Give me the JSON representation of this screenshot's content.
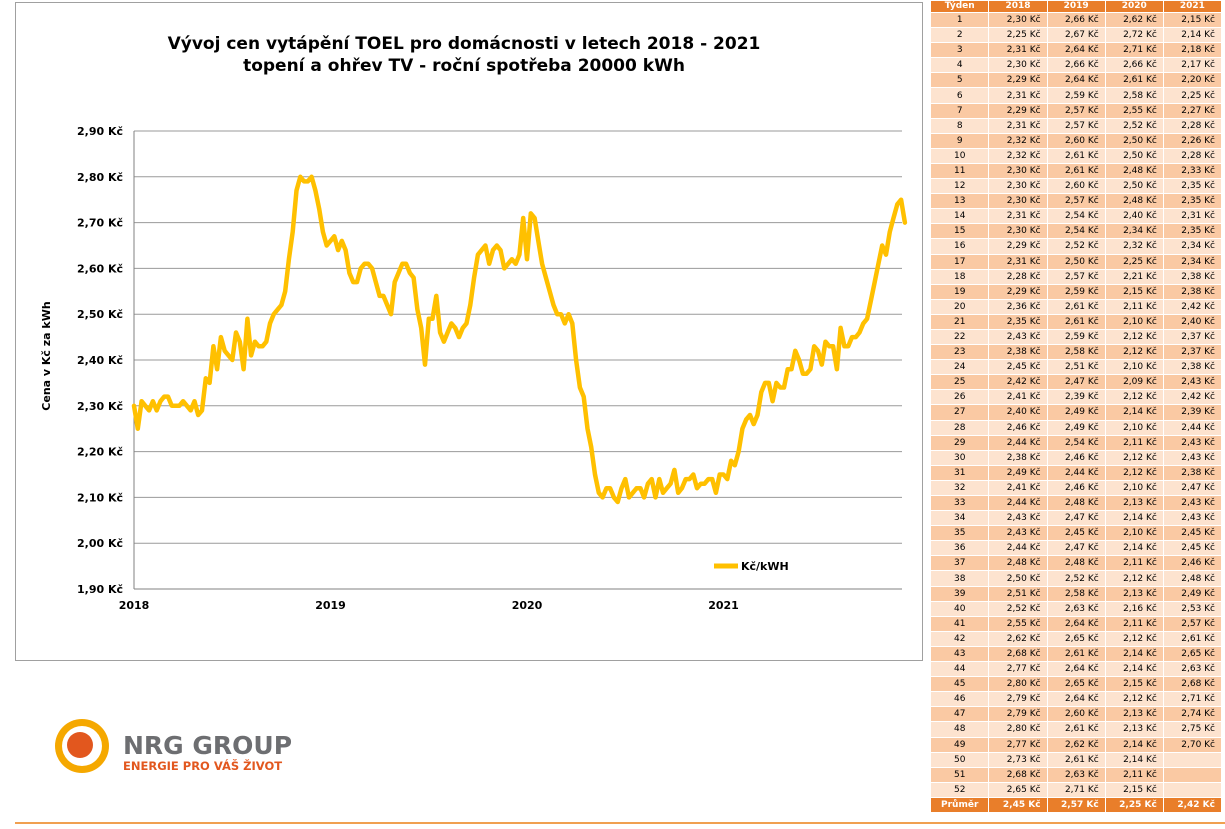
{
  "chart_data": {
    "type": "line",
    "title_line1": "Vývoj cen vytápění TOEL pro domácnosti v letech 2018 - 2021",
    "title_line2": "topení a ohřev TV - roční spotřeba 20000 kWh",
    "ylabel": "Cena v Kč za kWh",
    "xlabel": "",
    "ylim": [
      1.9,
      2.9
    ],
    "yticks": [
      "1,90 Kč",
      "2,00 Kč",
      "2,10 Kč",
      "2,20 Kč",
      "2,30 Kč",
      "2,40 Kč",
      "2,50 Kč",
      "2,60 Kč",
      "2,70 Kč",
      "2,80 Kč",
      "2,90 Kč"
    ],
    "xticks": [
      "2018",
      "2019",
      "2020",
      "2021"
    ],
    "grid": true,
    "legend_placement": "bottom-right",
    "series": [
      {
        "name": "Kč/kWH",
        "color": "#ffc000",
        "values": [
          2.3,
          2.25,
          2.31,
          2.3,
          2.29,
          2.31,
          2.29,
          2.31,
          2.32,
          2.32,
          2.3,
          2.3,
          2.3,
          2.31,
          2.3,
          2.29,
          2.31,
          2.28,
          2.29,
          2.36,
          2.35,
          2.43,
          2.38,
          2.45,
          2.42,
          2.41,
          2.4,
          2.46,
          2.44,
          2.38,
          2.49,
          2.41,
          2.44,
          2.43,
          2.43,
          2.44,
          2.48,
          2.5,
          2.51,
          2.52,
          2.55,
          2.62,
          2.68,
          2.77,
          2.8,
          2.79,
          2.79,
          2.8,
          2.77,
          2.73,
          2.68,
          2.65,
          2.66,
          2.67,
          2.64,
          2.66,
          2.64,
          2.59,
          2.57,
          2.57,
          2.6,
          2.61,
          2.61,
          2.6,
          2.57,
          2.54,
          2.54,
          2.52,
          2.5,
          2.57,
          2.59,
          2.61,
          2.61,
          2.59,
          2.58,
          2.51,
          2.47,
          2.39,
          2.49,
          2.49,
          2.54,
          2.46,
          2.44,
          2.46,
          2.48,
          2.47,
          2.45,
          2.47,
          2.48,
          2.52,
          2.58,
          2.63,
          2.64,
          2.65,
          2.61,
          2.64,
          2.65,
          2.64,
          2.6,
          2.61,
          2.62,
          2.61,
          2.63,
          2.71,
          2.62,
          2.72,
          2.71,
          2.66,
          2.61,
          2.58,
          2.55,
          2.52,
          2.5,
          2.5,
          2.48,
          2.5,
          2.48,
          2.4,
          2.34,
          2.32,
          2.25,
          2.21,
          2.15,
          2.11,
          2.1,
          2.12,
          2.12,
          2.1,
          2.09,
          2.12,
          2.14,
          2.1,
          2.11,
          2.12,
          2.12,
          2.1,
          2.13,
          2.14,
          2.1,
          2.14,
          2.11,
          2.12,
          2.13,
          2.16,
          2.11,
          2.12,
          2.14,
          2.14,
          2.15,
          2.12,
          2.13,
          2.13,
          2.14,
          2.14,
          2.11,
          2.15,
          2.15,
          2.14,
          2.18,
          2.17,
          2.2,
          2.25,
          2.27,
          2.28,
          2.26,
          2.28,
          2.33,
          2.35,
          2.35,
          2.31,
          2.35,
          2.34,
          2.34,
          2.38,
          2.38,
          2.42,
          2.4,
          2.37,
          2.37,
          2.38,
          2.43,
          2.42,
          2.39,
          2.44,
          2.43,
          2.43,
          2.38,
          2.47,
          2.43,
          2.43,
          2.45,
          2.45,
          2.46,
          2.48,
          2.49,
          2.53,
          2.57,
          2.61,
          2.65,
          2.63,
          2.68,
          2.71,
          2.74,
          2.75,
          2.7
        ]
      }
    ]
  },
  "table": {
    "headers": [
      "Týden",
      "2018",
      "2019",
      "2020",
      "2021"
    ],
    "rows": [
      [
        "1",
        "2,30 Kč",
        "2,66 Kč",
        "2,62 Kč",
        "2,15 Kč"
      ],
      [
        "2",
        "2,25 Kč",
        "2,67 Kč",
        "2,72 Kč",
        "2,14 Kč"
      ],
      [
        "3",
        "2,31 Kč",
        "2,64 Kč",
        "2,71 Kč",
        "2,18 Kč"
      ],
      [
        "4",
        "2,30 Kč",
        "2,66 Kč",
        "2,66 Kč",
        "2,17 Kč"
      ],
      [
        "5",
        "2,29 Kč",
        "2,64 Kč",
        "2,61 Kč",
        "2,20 Kč"
      ],
      [
        "6",
        "2,31 Kč",
        "2,59 Kč",
        "2,58 Kč",
        "2,25 Kč"
      ],
      [
        "7",
        "2,29 Kč",
        "2,57 Kč",
        "2,55 Kč",
        "2,27 Kč"
      ],
      [
        "8",
        "2,31 Kč",
        "2,57 Kč",
        "2,52 Kč",
        "2,28 Kč"
      ],
      [
        "9",
        "2,32 Kč",
        "2,60 Kč",
        "2,50 Kč",
        "2,26 Kč"
      ],
      [
        "10",
        "2,32 Kč",
        "2,61 Kč",
        "2,50 Kč",
        "2,28 Kč"
      ],
      [
        "11",
        "2,30 Kč",
        "2,61 Kč",
        "2,48 Kč",
        "2,33 Kč"
      ],
      [
        "12",
        "2,30 Kč",
        "2,60 Kč",
        "2,50 Kč",
        "2,35 Kč"
      ],
      [
        "13",
        "2,30 Kč",
        "2,57 Kč",
        "2,48 Kč",
        "2,35 Kč"
      ],
      [
        "14",
        "2,31 Kč",
        "2,54 Kč",
        "2,40 Kč",
        "2,31 Kč"
      ],
      [
        "15",
        "2,30 Kč",
        "2,54 Kč",
        "2,34 Kč",
        "2,35 Kč"
      ],
      [
        "16",
        "2,29 Kč",
        "2,52 Kč",
        "2,32 Kč",
        "2,34 Kč"
      ],
      [
        "17",
        "2,31 Kč",
        "2,50 Kč",
        "2,25 Kč",
        "2,34 Kč"
      ],
      [
        "18",
        "2,28 Kč",
        "2,57 Kč",
        "2,21 Kč",
        "2,38 Kč"
      ],
      [
        "19",
        "2,29 Kč",
        "2,59 Kč",
        "2,15 Kč",
        "2,38 Kč"
      ],
      [
        "20",
        "2,36 Kč",
        "2,61 Kč",
        "2,11 Kč",
        "2,42 Kč"
      ],
      [
        "21",
        "2,35 Kč",
        "2,61 Kč",
        "2,10 Kč",
        "2,40 Kč"
      ],
      [
        "22",
        "2,43 Kč",
        "2,59 Kč",
        "2,12 Kč",
        "2,37 Kč"
      ],
      [
        "23",
        "2,38 Kč",
        "2,58 Kč",
        "2,12 Kč",
        "2,37 Kč"
      ],
      [
        "24",
        "2,45 Kč",
        "2,51 Kč",
        "2,10 Kč",
        "2,38 Kč"
      ],
      [
        "25",
        "2,42 Kč",
        "2,47 Kč",
        "2,09 Kč",
        "2,43 Kč"
      ],
      [
        "26",
        "2,41 Kč",
        "2,39 Kč",
        "2,12 Kč",
        "2,42 Kč"
      ],
      [
        "27",
        "2,40 Kč",
        "2,49 Kč",
        "2,14 Kč",
        "2,39 Kč"
      ],
      [
        "28",
        "2,46 Kč",
        "2,49 Kč",
        "2,10 Kč",
        "2,44 Kč"
      ],
      [
        "29",
        "2,44 Kč",
        "2,54 Kč",
        "2,11 Kč",
        "2,43 Kč"
      ],
      [
        "30",
        "2,38 Kč",
        "2,46 Kč",
        "2,12 Kč",
        "2,43 Kč"
      ],
      [
        "31",
        "2,49 Kč",
        "2,44 Kč",
        "2,12 Kč",
        "2,38 Kč"
      ],
      [
        "32",
        "2,41 Kč",
        "2,46 Kč",
        "2,10 Kč",
        "2,47 Kč"
      ],
      [
        "33",
        "2,44 Kč",
        "2,48 Kč",
        "2,13 Kč",
        "2,43 Kč"
      ],
      [
        "34",
        "2,43 Kč",
        "2,47 Kč",
        "2,14 Kč",
        "2,43 Kč"
      ],
      [
        "35",
        "2,43 Kč",
        "2,45 Kč",
        "2,10 Kč",
        "2,45 Kč"
      ],
      [
        "36",
        "2,44 Kč",
        "2,47 Kč",
        "2,14 Kč",
        "2,45 Kč"
      ],
      [
        "37",
        "2,48 Kč",
        "2,48 Kč",
        "2,11 Kč",
        "2,46 Kč"
      ],
      [
        "38",
        "2,50 Kč",
        "2,52 Kč",
        "2,12 Kč",
        "2,48 Kč"
      ],
      [
        "39",
        "2,51 Kč",
        "2,58 Kč",
        "2,13 Kč",
        "2,49 Kč"
      ],
      [
        "40",
        "2,52 Kč",
        "2,63 Kč",
        "2,16 Kč",
        "2,53 Kč"
      ],
      [
        "41",
        "2,55 Kč",
        "2,64 Kč",
        "2,11 Kč",
        "2,57 Kč"
      ],
      [
        "42",
        "2,62 Kč",
        "2,65 Kč",
        "2,12 Kč",
        "2,61 Kč"
      ],
      [
        "43",
        "2,68 Kč",
        "2,61 Kč",
        "2,14 Kč",
        "2,65 Kč"
      ],
      [
        "44",
        "2,77 Kč",
        "2,64 Kč",
        "2,14 Kč",
        "2,63 Kč"
      ],
      [
        "45",
        "2,80 Kč",
        "2,65 Kč",
        "2,15 Kč",
        "2,68 Kč"
      ],
      [
        "46",
        "2,79 Kč",
        "2,64 Kč",
        "2,12 Kč",
        "2,71 Kč"
      ],
      [
        "47",
        "2,79 Kč",
        "2,60 Kč",
        "2,13 Kč",
        "2,74 Kč"
      ],
      [
        "48",
        "2,80 Kč",
        "2,61 Kč",
        "2,13 Kč",
        "2,75 Kč"
      ],
      [
        "49",
        "2,77 Kč",
        "2,62 Kč",
        "2,14 Kč",
        "2,70 Kč"
      ],
      [
        "50",
        "2,73 Kč",
        "2,61 Kč",
        "2,14 Kč",
        ""
      ],
      [
        "51",
        "2,68 Kč",
        "2,63 Kč",
        "2,11 Kč",
        ""
      ],
      [
        "52",
        "2,65 Kč",
        "2,71 Kč",
        "2,15 Kč",
        ""
      ]
    ],
    "average": [
      "Průměr",
      "2,45 Kč",
      "2,57 Kč",
      "2,25 Kč",
      "2,42 Kč"
    ]
  },
  "logo": {
    "name": "NRG GROUP",
    "tagline": "ENERGIE PRO VÁŠ ŽIVOT",
    "colors": {
      "orange": "#e2571e",
      "yellow": "#f5a800",
      "gray": "#6d6e71"
    }
  }
}
